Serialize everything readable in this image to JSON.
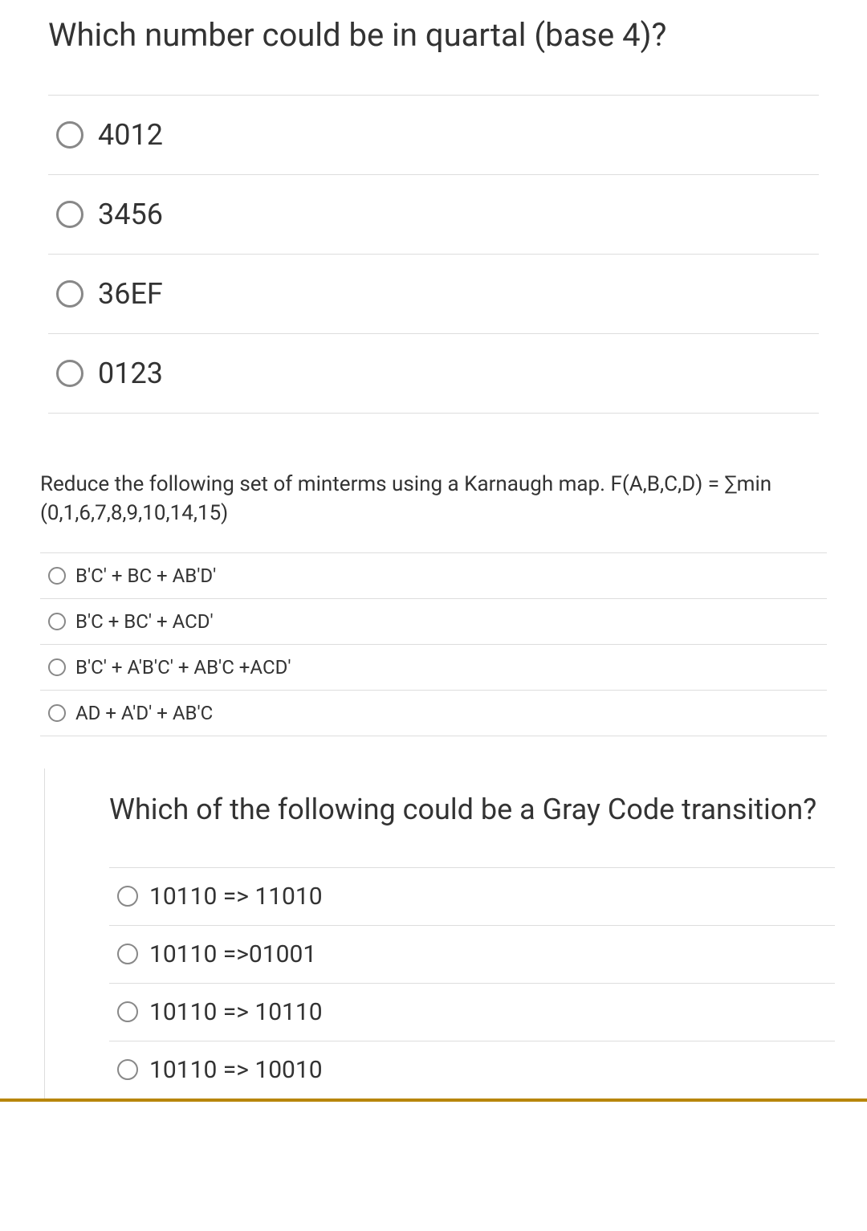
{
  "q1": {
    "prompt": "Which number could be in quartal (base 4)?",
    "options": [
      "4012",
      "3456",
      "36EF",
      "0123"
    ]
  },
  "q2": {
    "prompt": "Reduce the following set of minterms using a Karnaugh map. F(A,B,C,D) = ∑min (0,1,6,7,8,9,10,14,15)",
    "options": [
      "B'C' + BC + AB'D'",
      "B'C + BC' + ACD'",
      "B'C' + A'B'C' + AB'C +ACD'",
      "AD + A'D' + AB'C"
    ]
  },
  "q3": {
    "prompt": "Which of the following could be a Gray Code transition?",
    "options": [
      "10110 => 11010",
      "10110 =>01001",
      "10110 => 10110",
      "10110 => 10010"
    ]
  }
}
